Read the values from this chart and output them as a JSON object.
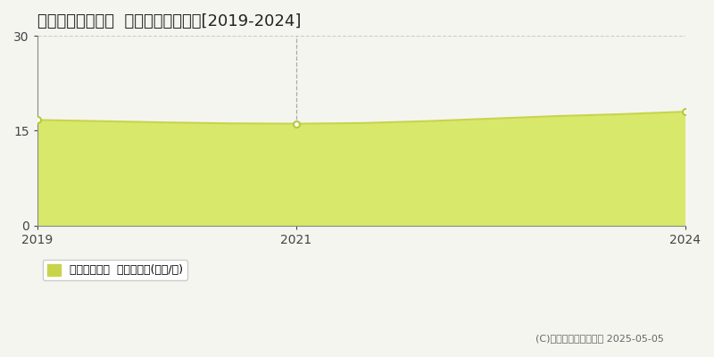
{
  "title": "鳥取市国府町奥谷  収益物件価格推移[2019-2024]",
  "years": [
    2019,
    2019.5,
    2020,
    2020.5,
    2021,
    2021.5,
    2022,
    2022.5,
    2023,
    2023.5,
    2024
  ],
  "values": [
    16.7,
    16.5,
    16.3,
    16.15,
    16.1,
    16.2,
    16.5,
    16.9,
    17.3,
    17.6,
    18.0
  ],
  "ylim": [
    0,
    30
  ],
  "yticks": [
    0,
    15,
    30
  ],
  "xticks": [
    2019,
    2021,
    2024
  ],
  "line_color": "#c8d44a",
  "fill_color": "#d8e86a",
  "fill_alpha": 1.0,
  "marker_points": [
    2019,
    2021,
    2024
  ],
  "marker_values": [
    16.7,
    16.1,
    18.0
  ],
  "marker_color": "white",
  "marker_edge_color": "#b8c83a",
  "vline_x": 2021,
  "vline_color": "#aaaaaa",
  "hgrid_color": "#cccccc",
  "bg_color": "#f5f5f0",
  "plot_bg_color": "#f5f5f0",
  "legend_label": "収益物件価格  平均坪単価(万円/坪)",
  "legend_square_color": "#c8d44a",
  "copyright_text": "(C)土地価格ドットコム 2025-05-05",
  "title_fontsize": 13,
  "tick_fontsize": 10,
  "legend_fontsize": 9,
  "copyright_fontsize": 8
}
